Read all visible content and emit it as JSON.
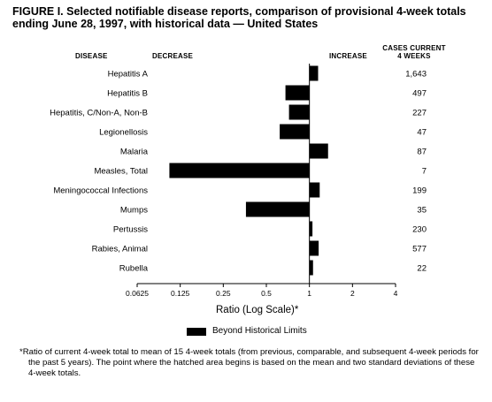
{
  "header": {
    "title": "FIGURE I. Selected notifiable disease reports, comparison of provisional 4-week totals ending June 28, 1997, with historical data — United States",
    "col_disease": "DISEASE",
    "col_decrease": "DECREASE",
    "col_increase": "INCREASE",
    "col_cases": "CASES CURRENT\n4 WEEKS"
  },
  "legend": {
    "label": "Beyond Historical Limits"
  },
  "footnote": "*Ratio of current 4-week total to mean of 15 4-week totals (from previous, comparable, and subsequent 4-week periods for the past 5 years). The point where the hatched area begins is based on the mean and two standard deviations of these 4-week totals.",
  "chart_data": {
    "type": "bar",
    "orientation": "horizontal",
    "xscale": "log2",
    "xlabel": "Ratio (Log Scale)*",
    "xlim": [
      0.0625,
      4
    ],
    "xticks": [
      "0.0625",
      "0.125",
      "0.25",
      "0.5",
      "1",
      "2",
      "4"
    ],
    "baseline": 1,
    "categories": [
      "Hepatitis A",
      "Hepatitis B",
      "Hepatitis, C/Non-A, Non-B",
      "Legionellosis",
      "Malaria",
      "Measles, Total",
      "Meningococcal Infections",
      "Mumps",
      "Pertussis",
      "Rabies, Animal",
      "Rubella"
    ],
    "values": [
      1.15,
      0.68,
      0.72,
      0.62,
      1.35,
      0.105,
      1.18,
      0.36,
      1.05,
      1.16,
      1.06
    ],
    "cases": [
      "1,643",
      "497",
      "227",
      "47",
      "87",
      "7",
      "199",
      "35",
      "230",
      "577",
      "22"
    ],
    "bar_color": "#000000"
  }
}
